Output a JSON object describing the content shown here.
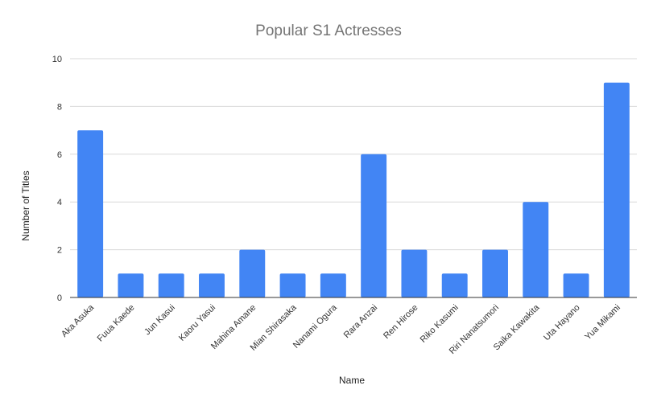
{
  "chart_data": {
    "type": "bar",
    "title": "Popular S1 Actresses",
    "xlabel": "Name",
    "ylabel": "Number of Titles",
    "categories": [
      "Aka Asuka",
      "Fuua Kaede",
      "Jun Kasui",
      "Kaoru Yasui",
      "Mahina Amane",
      "Mian Shirasaka",
      "Nanami Ogura",
      "Rara Anzai",
      "Ren Hirose",
      "Riko Kasumi",
      "Riri Nanatsumori",
      "Saika Kawakita",
      "Uta Hayano",
      "Yua Mikami"
    ],
    "values": [
      7,
      1,
      1,
      1,
      2,
      1,
      1,
      6,
      2,
      1,
      2,
      4,
      1,
      9
    ],
    "ylim": [
      0,
      10
    ],
    "yticks": [
      "0",
      "2",
      "4",
      "6",
      "8",
      "10"
    ],
    "grid": true,
    "legend": "none",
    "bar_color": "#4285f4"
  }
}
